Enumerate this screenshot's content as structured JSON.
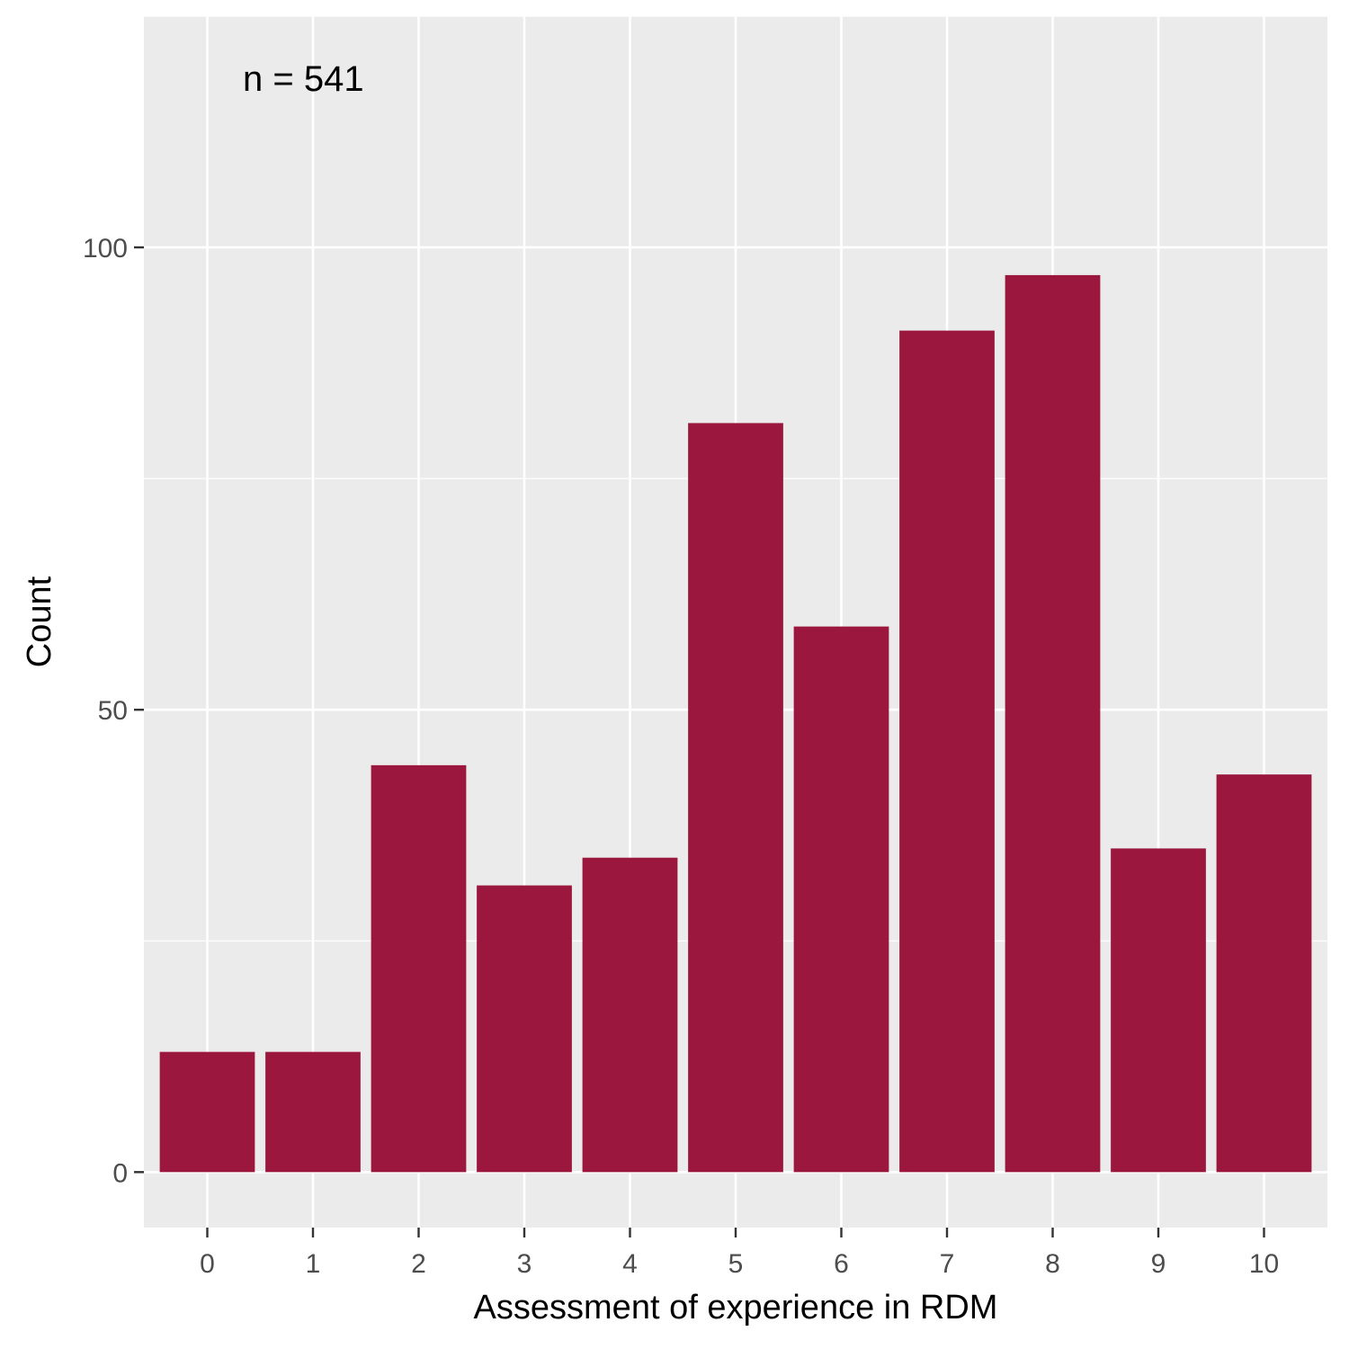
{
  "chart_data": {
    "type": "bar",
    "categories": [
      "0",
      "1",
      "2",
      "3",
      "4",
      "5",
      "6",
      "7",
      "8",
      "9",
      "10"
    ],
    "values": [
      13,
      13,
      44,
      31,
      34,
      81,
      59,
      91,
      97,
      35,
      43
    ],
    "xlabel": "Assessment of experience in RDM",
    "ylabel": "Count",
    "ylim": [
      -6,
      125
    ],
    "yticks": [
      0,
      50,
      100
    ],
    "annotation": "n = 541",
    "grid": true,
    "legend": "none",
    "bar_color": "#9b173e",
    "panel_background": "#ebebeb",
    "grid_color": "#ffffff"
  }
}
